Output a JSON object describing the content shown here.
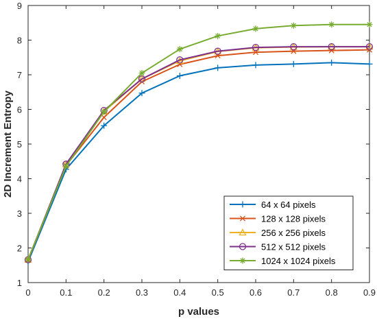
{
  "chart_data": {
    "type": "line",
    "title": "",
    "xlabel": "p values",
    "ylabel": "2D Increment Entropy",
    "x": [
      0,
      0.1,
      0.2,
      0.3,
      0.4,
      0.5,
      0.6,
      0.7,
      0.8,
      0.9
    ],
    "xlim": [
      0,
      0.9
    ],
    "ylim": [
      1,
      9
    ],
    "xticks": [
      "0",
      "0.1",
      "0.2",
      "0.3",
      "0.4",
      "0.5",
      "0.6",
      "0.7",
      "0.8",
      "0.9"
    ],
    "yticks": [
      "1",
      "2",
      "3",
      "4",
      "5",
      "6",
      "7",
      "8",
      "9"
    ],
    "grid": false,
    "legend_position": "bottom-right",
    "series": [
      {
        "name": "64 x 64 pixels",
        "color": "#0072BD",
        "marker": "plus",
        "values": [
          1.6,
          4.27,
          5.53,
          6.47,
          6.97,
          7.2,
          7.28,
          7.31,
          7.35,
          7.31
        ]
      },
      {
        "name": "128 x 128 pixels",
        "color": "#D95319",
        "marker": "x",
        "values": [
          1.65,
          4.38,
          5.77,
          6.8,
          7.3,
          7.55,
          7.65,
          7.68,
          7.7,
          7.72
        ]
      },
      {
        "name": "256 x 256 pixels",
        "color": "#EDB120",
        "marker": "triangle",
        "values": [
          1.66,
          4.42,
          5.94,
          6.88,
          7.4,
          7.67,
          7.78,
          7.8,
          7.81,
          7.81
        ]
      },
      {
        "name": "512 x 512 pixels",
        "color": "#7E2F8E",
        "marker": "circle",
        "values": [
          1.66,
          4.42,
          5.97,
          6.88,
          7.43,
          7.68,
          7.79,
          7.81,
          7.81,
          7.81
        ]
      },
      {
        "name": "1024 x 1024 pixels",
        "color": "#77AC30",
        "marker": "asterisk",
        "values": [
          1.67,
          4.36,
          5.93,
          7.05,
          7.74,
          8.12,
          8.33,
          8.42,
          8.45,
          8.45
        ]
      }
    ]
  }
}
